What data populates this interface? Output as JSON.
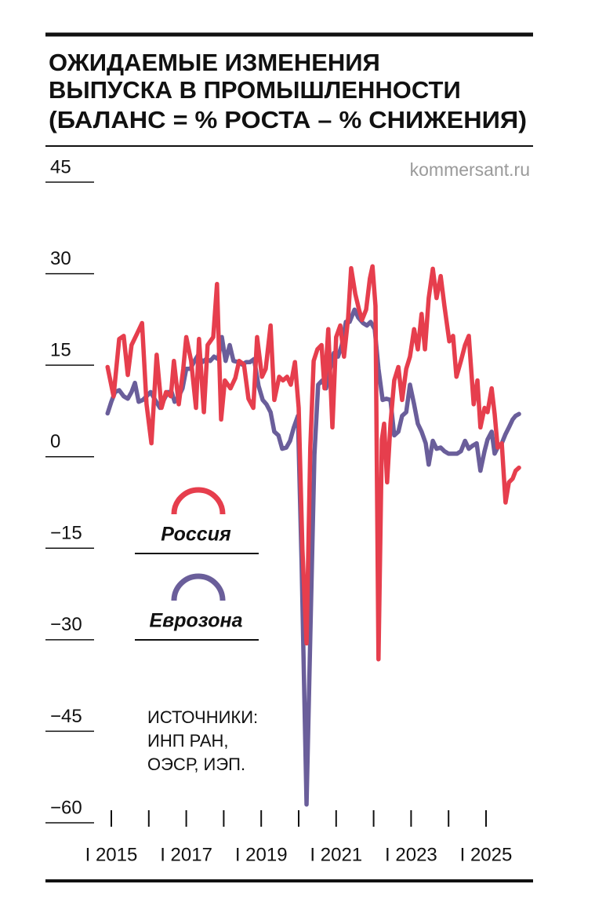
{
  "chart_data": {
    "type": "line",
    "title": [
      "ОЖИДАЕМЫЕ ИЗМЕНЕНИЯ",
      "ВЫПУСКА В ПРОМЫШЛЕННОСТИ",
      "(БАЛАНС = % РОСТА – % СНИЖЕНИЯ)"
    ],
    "watermark": "kommersant.ru",
    "source": [
      "ИСТОЧНИКИ:",
      "ИНП РАН,",
      "ОЭСР, ИЭП."
    ],
    "xlim": [
      2014.5,
      2026.25
    ],
    "ylim": [
      -60,
      45
    ],
    "yticks": [
      45,
      30,
      15,
      {
        "value": 0,
        "label": "0"
      },
      {
        "value": -15,
        "label": "−15"
      },
      {
        "value": -30,
        "label": "−30"
      },
      {
        "value": -45,
        "label": "−45"
      },
      {
        "value": -60,
        "label": "−60"
      }
    ],
    "xticks": [
      2015,
      2016,
      2017,
      2018,
      2019,
      2020,
      2021,
      2022,
      2023,
      2024,
      2025
    ],
    "xtick_labels": [
      {
        "value": 2015,
        "label": "I 2015"
      },
      {
        "value": 2017,
        "label": "I 2017"
      },
      {
        "value": 2019,
        "label": "I 2019"
      },
      {
        "value": 2021,
        "label": "I 2021"
      },
      {
        "value": 2023,
        "label": "I 2023"
      },
      {
        "value": 2025,
        "label": "I 2025"
      }
    ],
    "series": [
      {
        "name": "Еврозона",
        "color": "#6a5e9a",
        "x": [
          2014.9,
          2015.0,
          2015.1,
          2015.21,
          2015.33,
          2015.44,
          2015.54,
          2015.63,
          2015.73,
          2015.84,
          2015.94,
          2016.05,
          2016.17,
          2016.3,
          2016.4,
          2016.51,
          2016.61,
          2016.69,
          2016.8,
          2016.9,
          2017.0,
          2017.11,
          2017.22,
          2017.32,
          2017.43,
          2017.53,
          2017.64,
          2017.74,
          2017.85,
          2017.95,
          2018.05,
          2018.16,
          2018.26,
          2018.39,
          2018.49,
          2018.6,
          2018.7,
          2018.81,
          2018.93,
          2019.04,
          2019.14,
          2019.25,
          2019.35,
          2019.46,
          2019.56,
          2019.67,
          2019.77,
          2019.87,
          2019.98,
          2020.08,
          2020.21,
          2020.31,
          2020.42,
          2020.52,
          2020.63,
          2020.73,
          2020.84,
          2020.94,
          2021.05,
          2021.15,
          2021.26,
          2021.36,
          2021.49,
          2021.59,
          2021.72,
          2021.82,
          2021.92,
          2022.03,
          2022.13,
          2022.24,
          2022.34,
          2022.45,
          2022.55,
          2022.66,
          2022.76,
          2022.87,
          2022.97,
          2023.08,
          2023.18,
          2023.28,
          2023.39,
          2023.47,
          2023.58,
          2023.68,
          2023.79,
          2023.89,
          2024.0,
          2024.12,
          2024.23,
          2024.33,
          2024.44,
          2024.54,
          2024.64,
          2024.75,
          2024.85,
          2024.96,
          2025.04,
          2025.15,
          2025.23,
          2025.31,
          2025.42,
          2025.52,
          2025.61,
          2025.71,
          2025.79,
          2025.88
        ],
        "values": [
          7.1,
          9.0,
          10.6,
          10.9,
          9.9,
          9.5,
          10.6,
          12.1,
          9.0,
          9.3,
          9.9,
          10.6,
          9.3,
          8.0,
          9.3,
          10.6,
          10.6,
          9.0,
          9.9,
          11.2,
          14.4,
          14.4,
          15.7,
          16.7,
          15.5,
          16.0,
          15.7,
          16.4,
          16.0,
          19.6,
          15.7,
          18.3,
          15.7,
          15.5,
          15.1,
          15.5,
          15.5,
          16.0,
          11.6,
          9.3,
          8.6,
          7.3,
          4.1,
          3.5,
          1.3,
          1.5,
          2.6,
          4.8,
          6.7,
          -17.8,
          -57.0,
          -29.4,
          0.3,
          11.8,
          12.5,
          11.2,
          14.4,
          17.0,
          16.4,
          18.3,
          22.1,
          22.1,
          24.1,
          22.8,
          21.9,
          21.5,
          22.1,
          20.9,
          14.4,
          9.3,
          9.5,
          9.3,
          3.5,
          4.1,
          6.7,
          7.3,
          11.8,
          8.6,
          5.4,
          4.1,
          2.2,
          -1.3,
          2.6,
          1.3,
          1.5,
          0.9,
          0.5,
          0.5,
          0.5,
          0.9,
          2.6,
          1.3,
          1.8,
          2.2,
          -2.3,
          0.9,
          2.8,
          4.1,
          0.5,
          1.5,
          2.2,
          3.7,
          4.8,
          6.1,
          6.7,
          7.0
        ]
      },
      {
        "name": "Россия",
        "color": "#e63e4d",
        "x": [
          2014.9,
          2015.06,
          2015.21,
          2015.33,
          2015.44,
          2015.54,
          2015.69,
          2015.82,
          2015.94,
          2016.07,
          2016.21,
          2016.34,
          2016.46,
          2016.59,
          2016.67,
          2016.8,
          2016.92,
          2017.0,
          2017.13,
          2017.26,
          2017.34,
          2017.47,
          2017.57,
          2017.72,
          2017.82,
          2017.93,
          2018.03,
          2018.18,
          2018.31,
          2018.41,
          2018.54,
          2018.66,
          2018.79,
          2018.89,
          2019.02,
          2019.12,
          2019.25,
          2019.35,
          2019.48,
          2019.58,
          2019.69,
          2019.79,
          2019.9,
          2020.0,
          2020.1,
          2020.21,
          2020.31,
          2020.4,
          2020.5,
          2020.61,
          2020.69,
          2020.79,
          2020.9,
          2021.0,
          2021.11,
          2021.21,
          2021.32,
          2021.4,
          2021.51,
          2021.61,
          2021.69,
          2021.8,
          2021.9,
          2021.97,
          2022.05,
          2022.13,
          2022.22,
          2022.28,
          2022.36,
          2022.45,
          2022.55,
          2022.66,
          2022.76,
          2022.87,
          2022.97,
          2023.08,
          2023.18,
          2023.28,
          2023.37,
          2023.47,
          2023.58,
          2023.68,
          2023.79,
          2023.89,
          2024.02,
          2024.12,
          2024.21,
          2024.33,
          2024.44,
          2024.54,
          2024.67,
          2024.77,
          2024.85,
          2024.96,
          2025.04,
          2025.15,
          2025.23,
          2025.31,
          2025.42,
          2025.52,
          2025.61,
          2025.71,
          2025.79,
          2025.88
        ],
        "values": [
          14.7,
          9.9,
          19.3,
          19.8,
          13.4,
          18.3,
          20.2,
          21.9,
          8.6,
          2.2,
          16.7,
          8.0,
          10.6,
          9.9,
          15.7,
          8.6,
          14.4,
          19.6,
          15.7,
          8.0,
          19.3,
          7.3,
          18.3,
          19.6,
          28.3,
          6.1,
          12.5,
          11.2,
          12.9,
          15.7,
          15.1,
          9.5,
          8.0,
          19.6,
          13.1,
          14.4,
          21.5,
          9.3,
          13.1,
          12.5,
          13.1,
          11.8,
          15.5,
          8.0,
          -15.2,
          -30.6,
          1.5,
          15.7,
          17.6,
          18.3,
          11.2,
          20.9,
          4.8,
          19.6,
          21.5,
          16.4,
          22.8,
          30.9,
          26.7,
          24.1,
          22.4,
          24.1,
          29.2,
          31.2,
          24.7,
          -33.2,
          2.8,
          5.4,
          -4.2,
          5.4,
          12.5,
          14.7,
          9.3,
          14.4,
          16.4,
          20.9,
          17.6,
          23.4,
          17.6,
          26.0,
          30.8,
          26.0,
          29.6,
          24.7,
          18.9,
          19.8,
          13.1,
          15.7,
          18.3,
          19.8,
          8.6,
          12.5,
          4.8,
          8.0,
          7.3,
          11.2,
          7.0,
          1.5,
          2.2,
          -7.5,
          -4.2,
          -3.6,
          -2.3,
          -1.8
        ]
      }
    ]
  }
}
